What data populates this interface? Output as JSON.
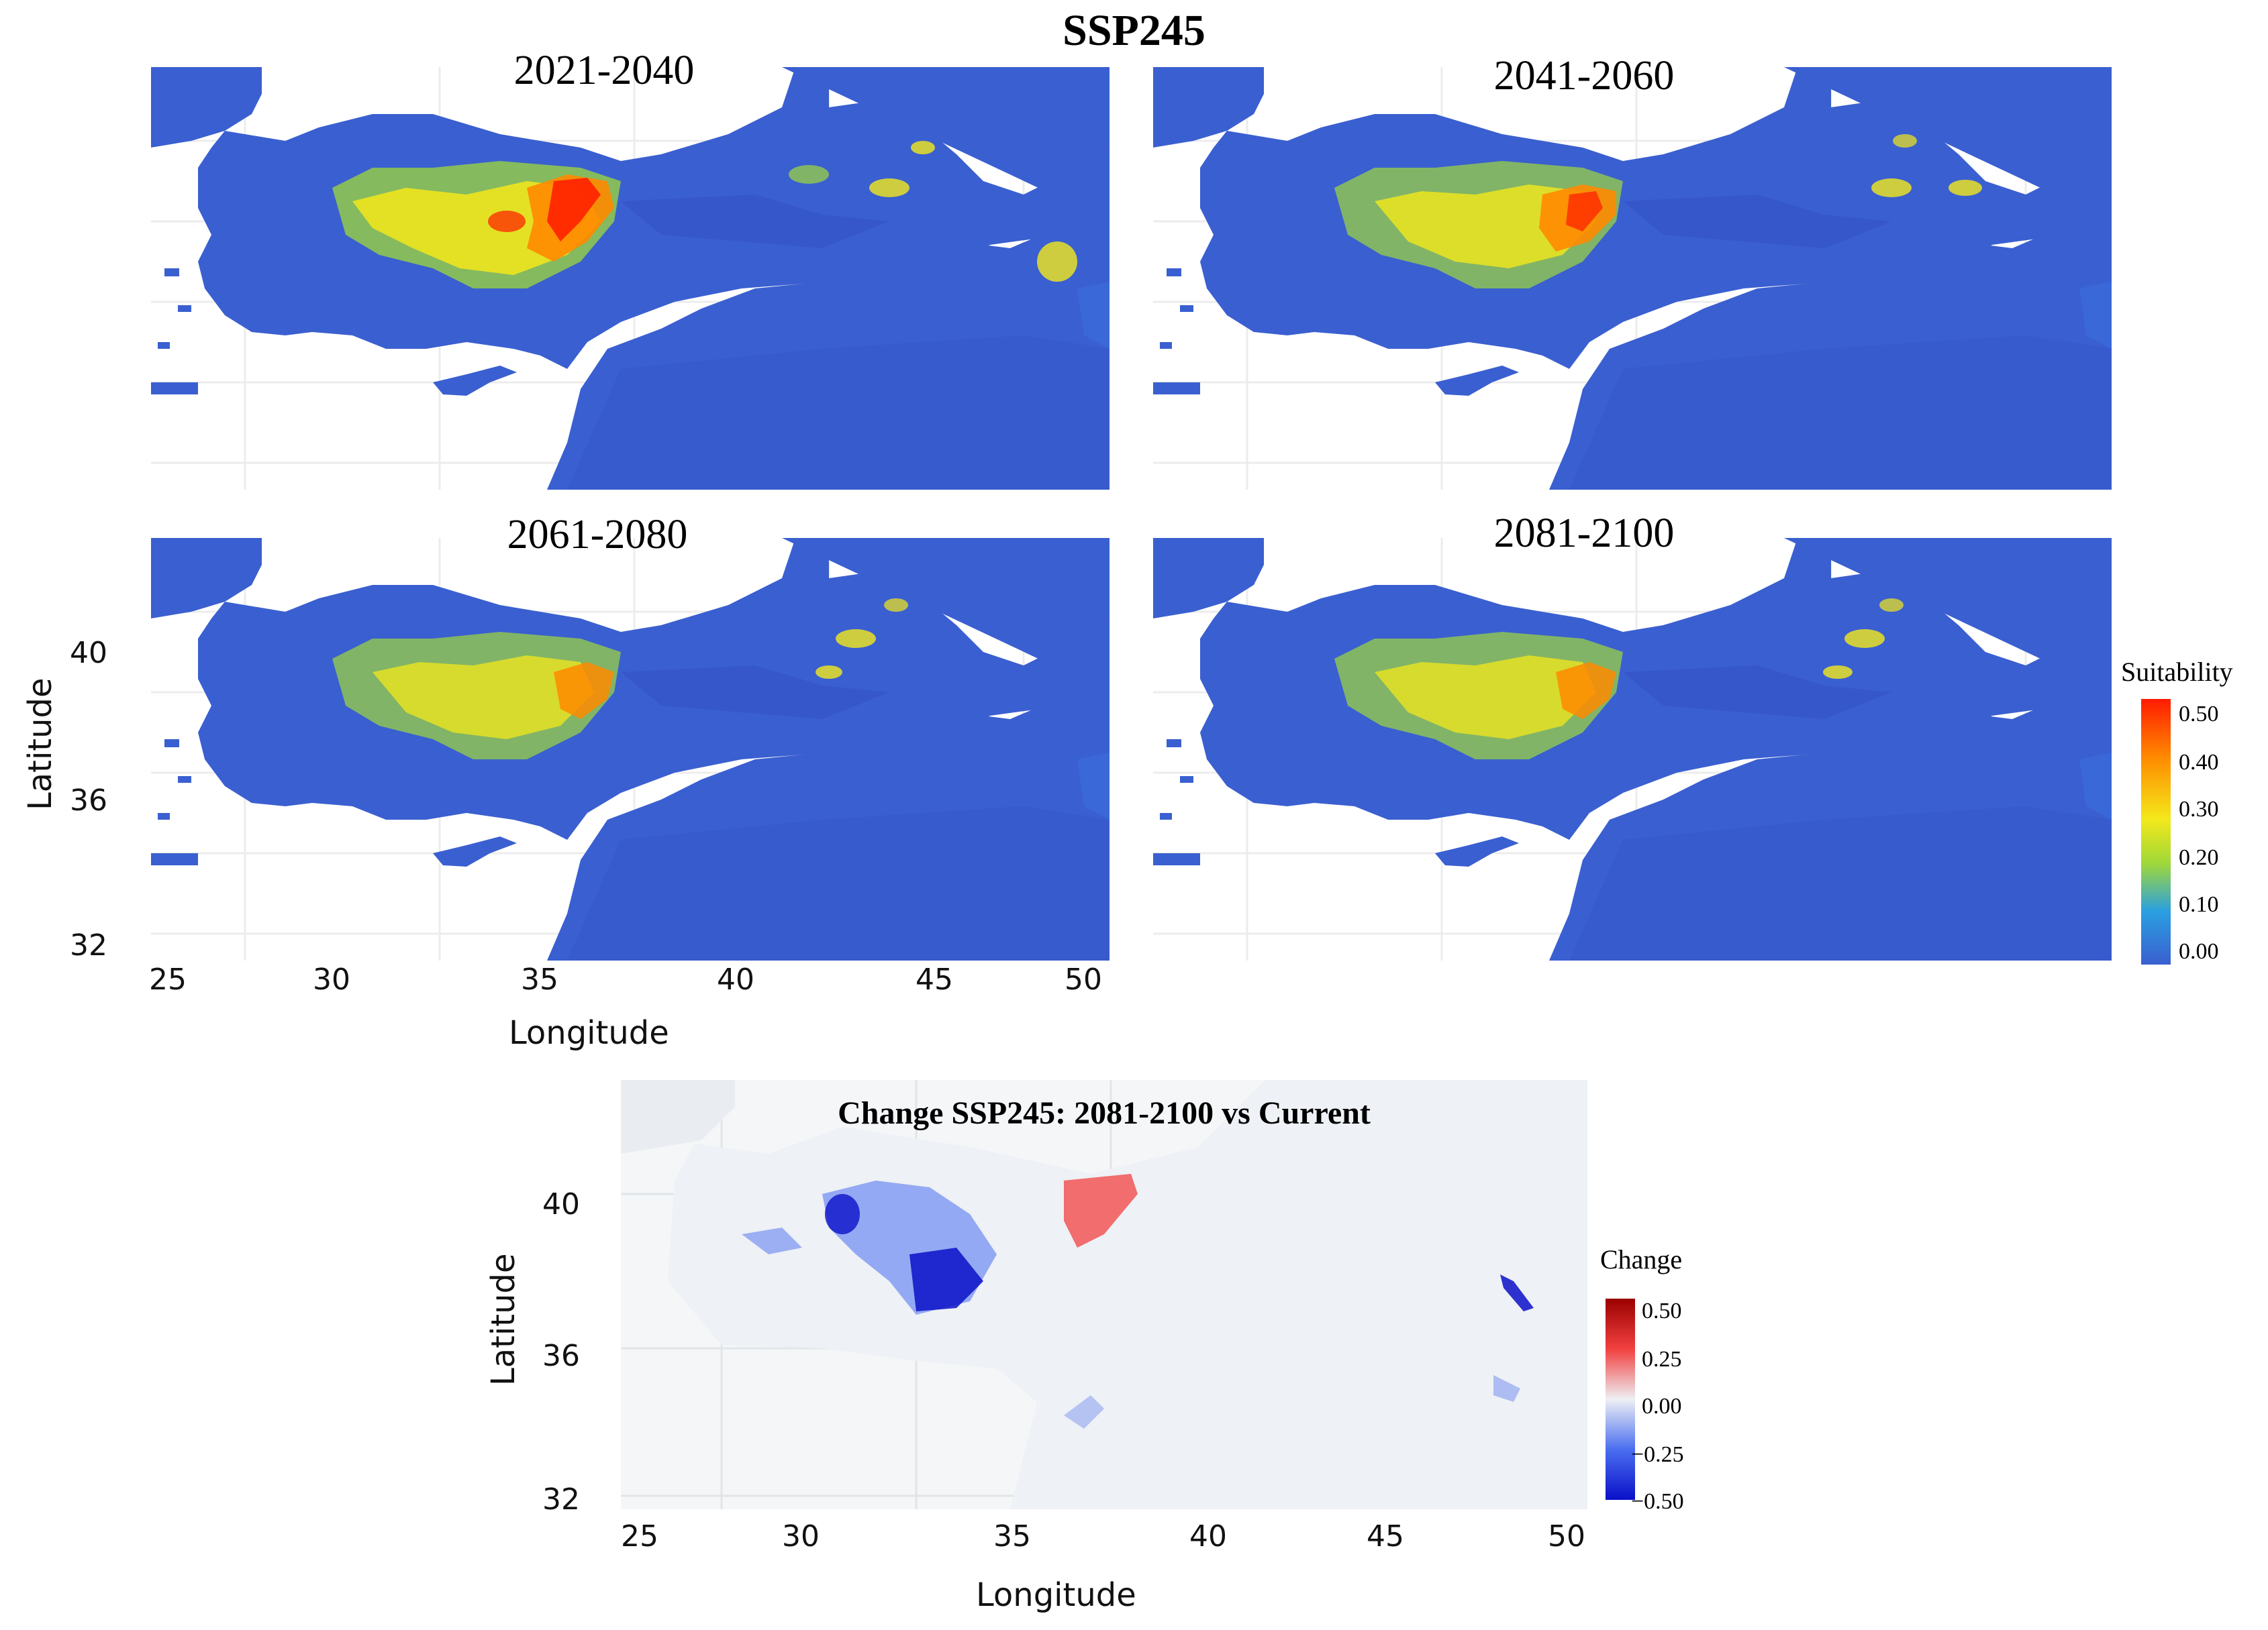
{
  "main_title": "SSP245",
  "panels": [
    {
      "title": "2021-2040"
    },
    {
      "title": "2041-2060"
    },
    {
      "title": "2061-2080"
    },
    {
      "title": "2081-2100"
    }
  ],
  "axes": {
    "xlabel": "Longitude",
    "ylabel": "Latitude",
    "x_ticks": [
      "25",
      "30",
      "35",
      "40",
      "45",
      "50"
    ],
    "y_ticks": [
      "40",
      "36",
      "32"
    ]
  },
  "suitability_legend": {
    "title": "Suitability",
    "labels": [
      "0.50",
      "0.40",
      "0.30",
      "0.20",
      "0.10",
      "0.00"
    ],
    "colors": [
      "#ff1a00",
      "#ff8a00",
      "#f4e81a",
      "#9fd83a",
      "#2a9fe0",
      "#3a5fd0"
    ]
  },
  "change_map": {
    "title": "Change SSP245: 2081-2100 vs Current",
    "xlabel": "Longitude",
    "ylabel": "Latitude",
    "x_ticks": [
      "25",
      "30",
      "35",
      "40",
      "45",
      "50"
    ],
    "y_ticks": [
      "40",
      "36",
      "32"
    ]
  },
  "change_legend": {
    "title": "Change",
    "labels": [
      "0.50",
      "0.25",
      "0.00",
      "−0.25",
      "−0.50"
    ],
    "colors": [
      "#9b0000",
      "#f24040",
      "#eef0f4",
      "#4a6ef0",
      "#0a10c8"
    ]
  },
  "colors": {
    "ocean_white": "#ffffff",
    "land_base": "#3a5fd0",
    "change_base": "#eef2f6"
  }
}
